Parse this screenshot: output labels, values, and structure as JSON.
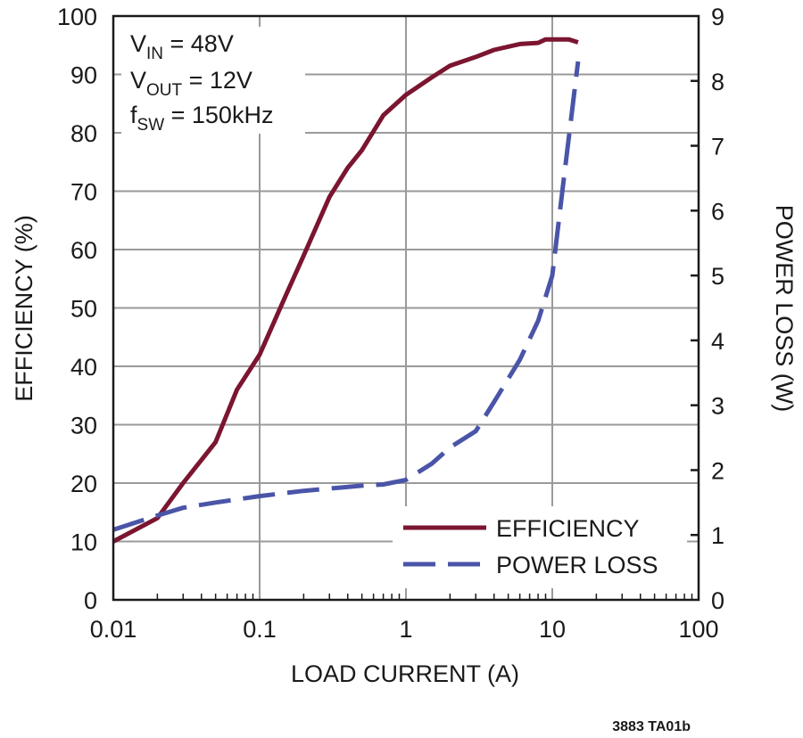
{
  "chart_data": {
    "type": "line",
    "xlabel": "LOAD CURRENT (A)",
    "ylabel": "EFFICIENCY (%)",
    "y2label": "POWER LOSS (W)",
    "xscale": "log",
    "xlim": [
      0.01,
      100
    ],
    "ylim": [
      0,
      100
    ],
    "y2lim": [
      0,
      9
    ],
    "grid": true,
    "legend_position": "bottom-right",
    "x_ticks": [
      "0.01",
      "0.1",
      "1",
      "10",
      "100"
    ],
    "y_ticks": [
      "0",
      "10",
      "20",
      "30",
      "40",
      "50",
      "60",
      "70",
      "80",
      "90",
      "100"
    ],
    "y2_ticks": [
      "0",
      "1",
      "2",
      "3",
      "4",
      "5",
      "6",
      "7",
      "8",
      "9"
    ],
    "annotation": {
      "vin": {
        "main": "V",
        "sub": "IN",
        "rest": " = 48V"
      },
      "vout": {
        "main": "V",
        "sub": "OUT",
        "rest": " = 12V"
      },
      "fsw": {
        "main": "f",
        "sub": "SW",
        "rest": " = 150kHz"
      }
    },
    "figure_id": "3883 TA01b",
    "series": [
      {
        "name": "EFFICIENCY",
        "axis": "left",
        "style": "solid",
        "color": "#7b1530",
        "x": [
          0.01,
          0.02,
          0.03,
          0.05,
          0.07,
          0.1,
          0.15,
          0.2,
          0.3,
          0.4,
          0.5,
          0.7,
          1,
          1.5,
          2,
          3,
          4,
          6,
          8,
          9,
          10,
          13,
          15
        ],
        "y": [
          10,
          14,
          20,
          27,
          36,
          42,
          52,
          59,
          69,
          74,
          77,
          83,
          86.5,
          89.5,
          91.5,
          93,
          94.2,
          95.2,
          95.4,
          96,
          96,
          96,
          95.5
        ]
      },
      {
        "name": "POWER LOSS",
        "axis": "right",
        "style": "dashed",
        "color": "#4a55a8",
        "x": [
          0.01,
          0.02,
          0.03,
          0.05,
          0.1,
          0.2,
          0.5,
          0.7,
          1,
          1.5,
          2,
          3,
          4,
          6,
          8,
          10,
          12,
          15
        ],
        "y": [
          1.08,
          1.3,
          1.42,
          1.5,
          1.6,
          1.68,
          1.76,
          1.78,
          1.85,
          2.1,
          2.35,
          2.6,
          3.05,
          3.7,
          4.3,
          5.0,
          6.5,
          8.3
        ]
      }
    ]
  }
}
